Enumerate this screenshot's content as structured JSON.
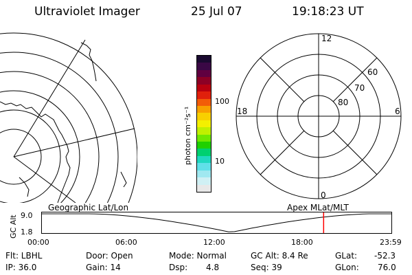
{
  "header": {
    "title": "Ultraviolet Imager",
    "date": "25 Jul 07",
    "time": "19:18:23 UT"
  },
  "colorbar": {
    "unit": "photon cm⁻²s⁻¹",
    "ticks": [
      "100",
      "10"
    ],
    "colors": [
      "#1a0a30",
      "#3a0845",
      "#600040",
      "#8c0025",
      "#b8000f",
      "#e0200c",
      "#f25c08",
      "#f8a000",
      "#f8d000",
      "#f4f000",
      "#c0f000",
      "#70e800",
      "#20d000",
      "#00d070",
      "#20d8c0",
      "#60e0e8",
      "#a0e8f0",
      "#d0f0f4",
      "#e8e8e8"
    ]
  },
  "polar_plot": {
    "clock_labels": {
      "top": "12",
      "left": "18",
      "right": "6",
      "bottom": "0"
    },
    "lat_labels": [
      "60",
      "70",
      "80"
    ]
  },
  "bottom_panel": {
    "left_title": "Geographic Lat/Lon",
    "right_title": "Apex MLat/MLT",
    "axis_label": "GC Alt",
    "y_ticks": [
      "9.0",
      "1.8"
    ],
    "time_ticks": [
      "00:00",
      "06:00",
      "12:00",
      "18:00",
      "23:59"
    ],
    "marker_time": "19:18:23",
    "marker_color": "#ff0000"
  },
  "status": {
    "filter": "Flt: LBHL",
    "ip": "IP: 36.0",
    "door": "Door: Open",
    "gain": "Gain: 14",
    "mode": "Mode: Normal",
    "dsp_label": "Dsp:",
    "dsp_value": "4.8",
    "gc_alt": "GC Alt: 8.4 Re",
    "seq": "Seq: 39",
    "glat_label": "GLat:",
    "glat_value": "-52.3",
    "glon_label": "GLon:",
    "glon_value": "76.0"
  }
}
